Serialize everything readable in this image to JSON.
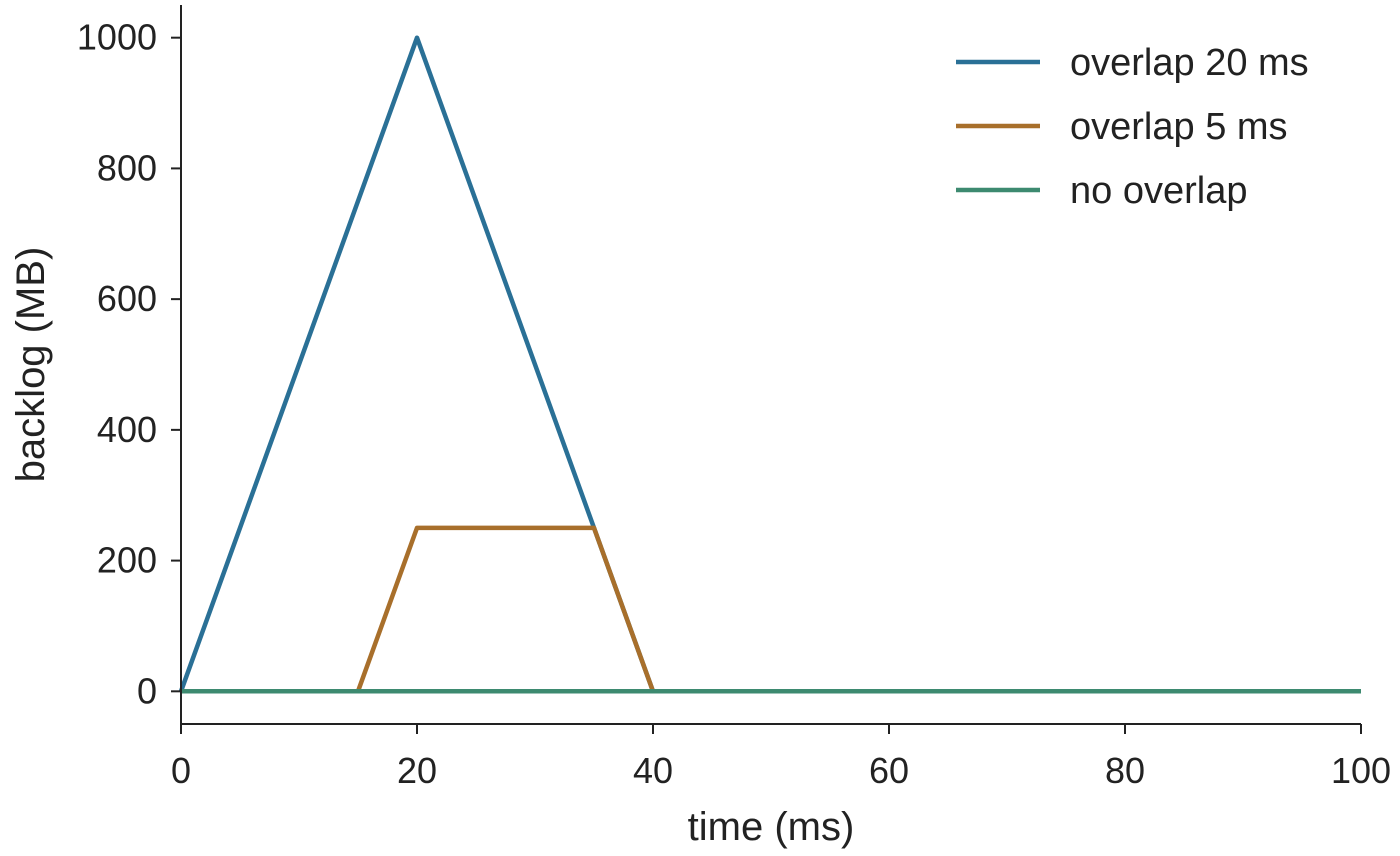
{
  "chart_data": {
    "type": "line",
    "title": "",
    "xlabel": "time (ms)",
    "ylabel": "backlog (MB)",
    "xlim": [
      0,
      100
    ],
    "ylim": [
      -50,
      1050
    ],
    "xticks": [
      0,
      20,
      40,
      60,
      80,
      100
    ],
    "yticks": [
      0,
      200,
      400,
      600,
      800,
      1000
    ],
    "grid": false,
    "legend_position": "top-right",
    "series": [
      {
        "name": "overlap 20 ms",
        "color": "#2a7096",
        "points": [
          [
            0,
            0
          ],
          [
            20,
            1000
          ],
          [
            35,
            250
          ],
          [
            40,
            0
          ],
          [
            100,
            0
          ]
        ]
      },
      {
        "name": "overlap 5 ms",
        "color": "#a86f2b",
        "points": [
          [
            0,
            0
          ],
          [
            15,
            0
          ],
          [
            20,
            250
          ],
          [
            35,
            250
          ],
          [
            40,
            0
          ],
          [
            100,
            0
          ]
        ]
      },
      {
        "name": "no overlap",
        "color": "#3d8a70",
        "points": [
          [
            0,
            0
          ],
          [
            100,
            0
          ]
        ]
      }
    ]
  }
}
